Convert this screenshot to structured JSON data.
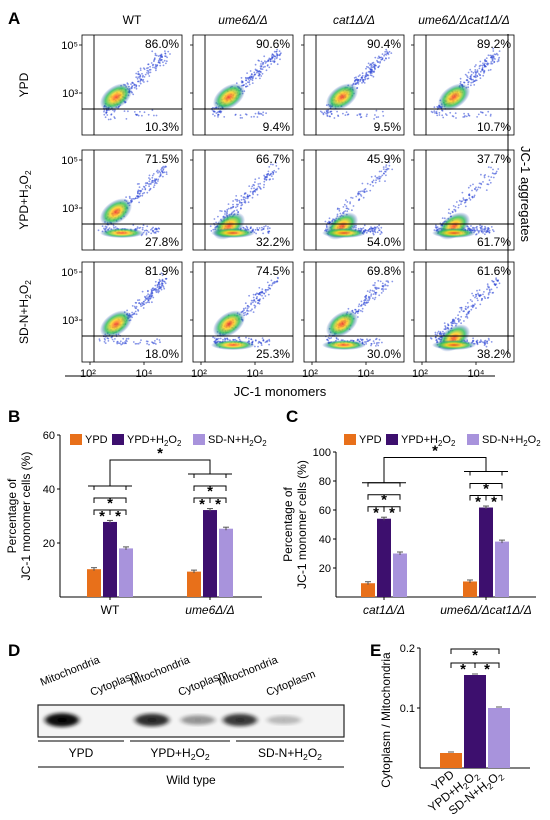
{
  "panel_a": {
    "letter": "A",
    "columns": [
      "WT",
      "ume6Δ/Δ",
      "cat1Δ/Δ",
      "ume6Δ/Δcat1Δ/Δ"
    ],
    "rows": [
      {
        "label": "YPD",
        "upper": [
          "86.0%",
          "90.6%",
          "90.4%",
          "89.2%"
        ],
        "lower": [
          "10.3%",
          "9.4%",
          "9.5%",
          "10.7%"
        ]
      },
      {
        "label": "YPD+H2O2",
        "upper": [
          "71.5%",
          "66.7%",
          "45.9%",
          "37.7%"
        ],
        "lower": [
          "27.8%",
          "32.2%",
          "54.0%",
          "61.7%"
        ]
      },
      {
        "label": "SD-N+H2O2",
        "upper": [
          "81.9%",
          "74.5%",
          "69.8%",
          "61.6%"
        ],
        "lower": [
          "18.0%",
          "25.3%",
          "30.0%",
          "38.2%"
        ]
      }
    ],
    "y_ticks": [
      "10⁵",
      "10³"
    ],
    "x_ticks": [
      "10²",
      "10⁴"
    ],
    "x_title": "JC-1 monomers",
    "y_title": "JC-1 aggregates"
  },
  "colors": {
    "ypd": "#e8701a",
    "ypd_h2o2": "#3d0f6e",
    "sdn_h2o2": "#a893dc"
  },
  "legend": {
    "ypd": "YPD",
    "ypd_h2o2": "YPD+H2O2",
    "sdn_h2o2": "SD-N+H2O2"
  },
  "panel_b": {
    "letter": "B",
    "star": "*"
  },
  "panel_c": {
    "letter": "C",
    "star": "*"
  },
  "panel_d": {
    "letter": "D",
    "lanes": [
      "Mitochondria",
      "Cytoplasm",
      "Mitochondria",
      "Cytoplasm",
      "Mitochondria",
      "Cytoplasm"
    ],
    "groups": [
      "YPD",
      "YPD+H2O2",
      "SD-N+H2O2"
    ],
    "footer": "Wild type"
  },
  "panel_e": {
    "letter": "E",
    "star": "*"
  },
  "chart_data": [
    {
      "type": "bar",
      "panel": "B",
      "categories": [
        "WT",
        "ume6Δ/Δ"
      ],
      "series": [
        {
          "name": "YPD",
          "values": [
            10.3,
            9.4
          ]
        },
        {
          "name": "YPD+H2O2",
          "values": [
            27.8,
            32.2
          ]
        },
        {
          "name": "SD-N+H2O2",
          "values": [
            18.0,
            25.3
          ]
        }
      ],
      "ylabel": "Percentage of JC-1 monomer cells (%)",
      "ylim": [
        0,
        60
      ],
      "yticks": [
        20,
        40,
        60
      ],
      "legend": "top"
    },
    {
      "type": "bar",
      "panel": "C",
      "categories": [
        "cat1Δ/Δ",
        "ume6Δ/Δcat1Δ/Δ"
      ],
      "series": [
        {
          "name": "YPD",
          "values": [
            9.5,
            10.7
          ]
        },
        {
          "name": "YPD+H2O2",
          "values": [
            54.0,
            61.7
          ]
        },
        {
          "name": "SD-N+H2O2",
          "values": [
            30.0,
            38.2
          ]
        }
      ],
      "ylabel": "Percentage of JC-1 monomer cells (%)",
      "ylim": [
        0,
        100
      ],
      "yticks": [
        20,
        40,
        60,
        80,
        100
      ],
      "legend": "top"
    },
    {
      "type": "bar",
      "panel": "E",
      "categories": [
        "YPD",
        "YPD+H2O2",
        "SD-N+H2O2"
      ],
      "values": [
        0.025,
        0.155,
        0.1
      ],
      "ylabel": "Cytoplasm / Mitochondria",
      "ylim": [
        0,
        0.2
      ],
      "yticks": [
        0.1,
        0.2
      ]
    }
  ]
}
